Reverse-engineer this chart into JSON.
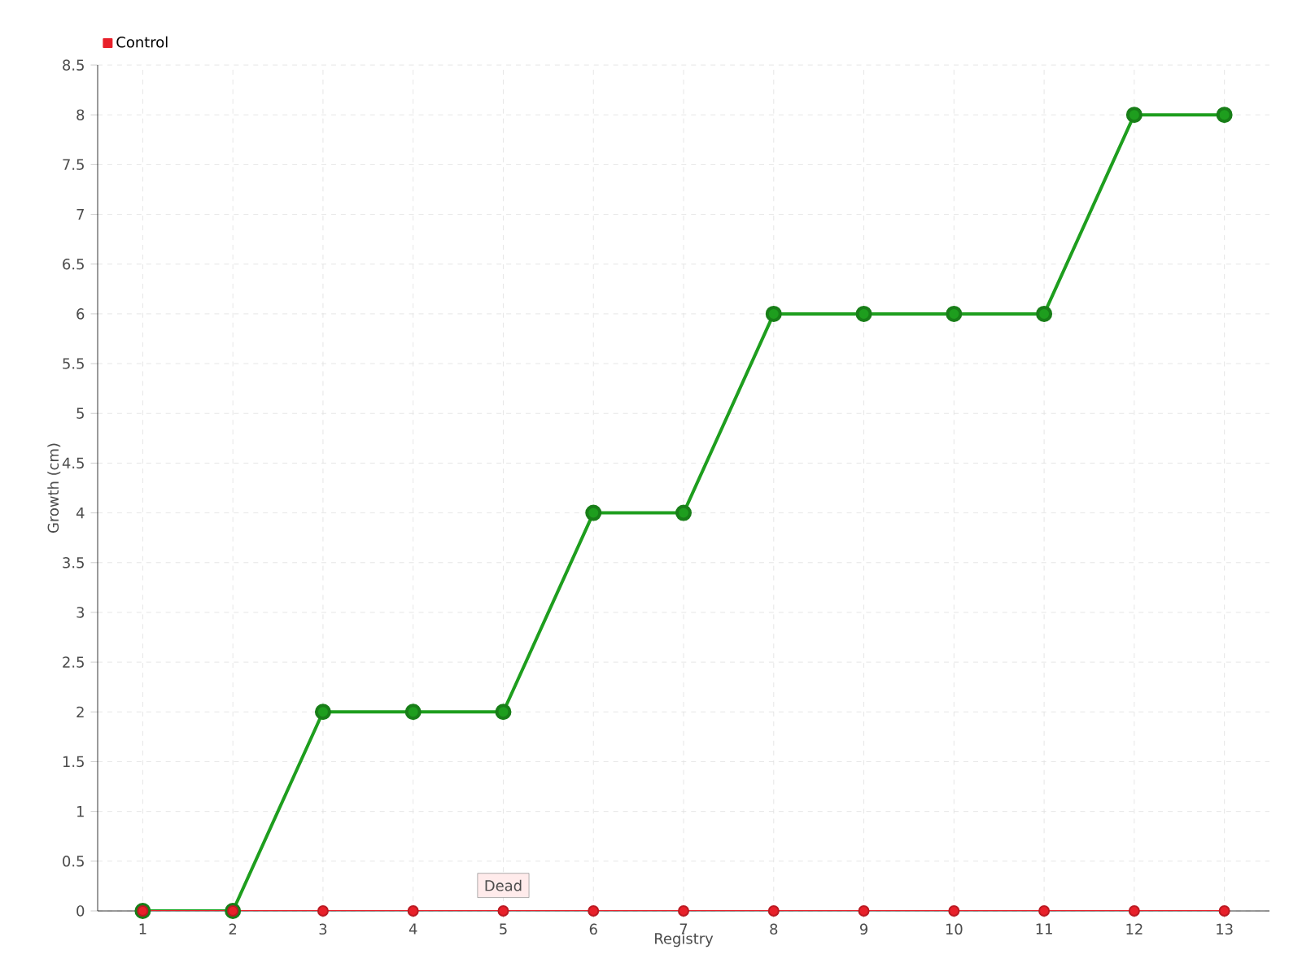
{
  "chart_data": {
    "type": "line",
    "xlabel": "Registry",
    "ylabel": "Growth (cm)",
    "categories": [
      "1",
      "2",
      "3",
      "4",
      "5",
      "6",
      "7",
      "8",
      "9",
      "10",
      "11",
      "12",
      "13"
    ],
    "series": [
      {
        "color": "#1e9e1e",
        "values": [
          0,
          0,
          2,
          2,
          2,
          4,
          4,
          6,
          6,
          6,
          6,
          8,
          8
        ]
      },
      {
        "name": "Control",
        "color": "#e8202a",
        "values": [
          0,
          0,
          0,
          0,
          0,
          0,
          0,
          0,
          0,
          0,
          0,
          0,
          0
        ]
      }
    ],
    "ylim": [
      0,
      8.5
    ],
    "yticks": [
      0,
      0.5,
      1,
      1.5,
      2,
      2.5,
      3,
      3.5,
      4,
      4.5,
      5,
      5.5,
      6,
      6.5,
      7,
      7.5,
      8,
      8.5
    ],
    "annotations": [
      {
        "text": "Dead",
        "x": "5",
        "y": 0
      }
    ],
    "grid": true,
    "legend": "top left",
    "marker": "circle",
    "line_style": "solid"
  }
}
